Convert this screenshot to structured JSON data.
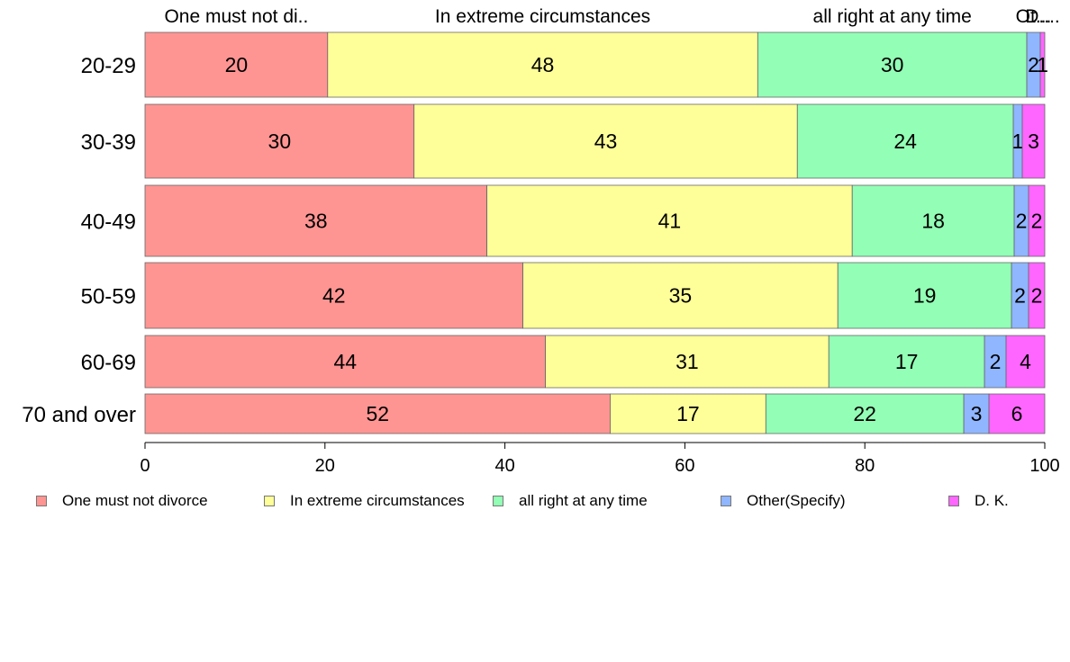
{
  "chart_data": {
    "type": "bar",
    "orientation": "horizontal",
    "stacked": true,
    "categories": [
      "20-29",
      "30-39",
      "40-49",
      "50-59",
      "60-69",
      "70 and over"
    ],
    "series": [
      {
        "name": "One must not divorce",
        "color": "#ff9593",
        "values": [
          20.3,
          29.9,
          38.0,
          42.0,
          44.5,
          51.7
        ],
        "labels": [
          "20",
          "30",
          "38",
          "42",
          "44",
          "52"
        ]
      },
      {
        "name": "In extreme circumstances",
        "color": "#ffff99",
        "values": [
          47.8,
          42.6,
          40.6,
          35.0,
          31.5,
          17.3
        ],
        "labels": [
          "48",
          "43",
          "41",
          "35",
          "31",
          "17"
        ]
      },
      {
        "name": "all right at any time",
        "color": "#93ffb6",
        "values": [
          29.9,
          24.0,
          18.0,
          19.3,
          17.3,
          22.0
        ],
        "labels": [
          "30",
          "24",
          "18",
          "19",
          "17",
          "22"
        ]
      },
      {
        "name": "Other(Specify)",
        "color": "#8fb6ff",
        "values": [
          1.5,
          1.0,
          1.6,
          1.9,
          2.4,
          2.8
        ],
        "labels": [
          "2",
          "1",
          "2",
          "2",
          "2",
          "3"
        ]
      },
      {
        "name": "D. K.",
        "color": "#ff66ff",
        "values": [
          0.5,
          2.5,
          1.8,
          1.8,
          4.3,
          6.2
        ],
        "labels": [
          "1",
          "3",
          "2",
          "2",
          "4",
          "6"
        ]
      }
    ],
    "top_labels": [
      "One must not di..",
      "In extreme circumstances",
      "all right at any time",
      "Ot...",
      "D...."
    ],
    "xlim": [
      0,
      100
    ],
    "xticks": [
      "0",
      "20",
      "40",
      "60",
      "80",
      "100"
    ],
    "grid": false,
    "legend_position": "bottom"
  }
}
